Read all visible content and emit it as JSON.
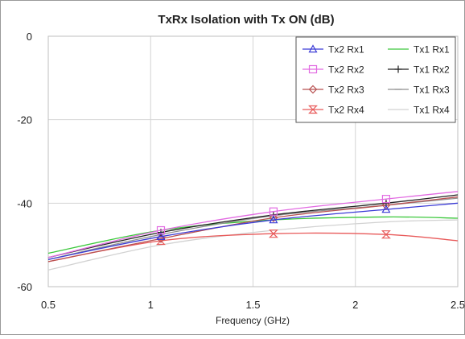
{
  "chart_data": {
    "type": "line",
    "title": "TxRx Isolation with Tx ON (dB)",
    "xlabel": "Frequency (GHz)",
    "ylabel": "",
    "xlim": [
      0.5,
      2.5
    ],
    "ylim": [
      -60,
      0
    ],
    "xticks": [
      0.5,
      1,
      1.5,
      2,
      2.5
    ],
    "xtick_labels": [
      "0.5",
      "1",
      "1.5",
      "2",
      "2.5"
    ],
    "yticks": [
      0,
      -20,
      -40,
      -60
    ],
    "ytick_labels": [
      "0",
      "-20",
      "-40",
      "-60"
    ],
    "grid": true,
    "legend_position": "top-right",
    "series": [
      {
        "name": "Tx2 Rx1",
        "color": "#3b3bd6",
        "marker": "triangle",
        "x": [
          0.5,
          1.05,
          1.6,
          2.15,
          2.5
        ],
        "y": [
          -53.5,
          -48.0,
          -44.0,
          -41.5,
          -40.0
        ]
      },
      {
        "name": "Tx2 Rx2",
        "color": "#e26be2",
        "marker": "square",
        "x": [
          0.5,
          1.05,
          1.6,
          2.15,
          2.5
        ],
        "y": [
          -53.0,
          -46.5,
          -42.0,
          -39.0,
          -37.2
        ]
      },
      {
        "name": "Tx2 Rx3",
        "color": "#b85252",
        "marker": "diamond",
        "x": [
          0.5,
          1.05,
          1.6,
          2.15,
          2.5
        ],
        "y": [
          -54.0,
          -48.5,
          -43.5,
          -40.5,
          -38.5
        ]
      },
      {
        "name": "Tx2 Rx4",
        "color": "#e85a5a",
        "marker": "hourglass",
        "x": [
          0.5,
          1.05,
          1.6,
          2.15,
          2.5
        ],
        "y": [
          -54.0,
          -49.0,
          -47.3,
          -47.5,
          -49.0
        ]
      },
      {
        "name": "Tx1 Rx1",
        "color": "#3cc83c",
        "marker": "none",
        "x": [
          0.5,
          1.05,
          1.6,
          2.15,
          2.5
        ],
        "y": [
          -52.0,
          -46.5,
          -44.0,
          -43.3,
          -43.6
        ]
      },
      {
        "name": "Tx1 Rx2",
        "color": "#222222",
        "marker": "plus",
        "x": [
          0.5,
          1.05,
          1.6,
          2.15,
          2.5
        ],
        "y": [
          -53.0,
          -47.0,
          -42.8,
          -40.0,
          -38.0
        ]
      },
      {
        "name": "Tx1 Rx3",
        "color": "#8f8f8f",
        "marker": "dash",
        "x": [
          0.5,
          1.05,
          1.6,
          2.15,
          2.5
        ],
        "y": [
          -53.5,
          -47.5,
          -43.0,
          -40.5,
          -38.8
        ]
      },
      {
        "name": "Tx1 Rx4",
        "color": "#d2d2d2",
        "marker": "none",
        "x": [
          0.5,
          1.05,
          1.6,
          2.15,
          2.5
        ],
        "y": [
          -56.0,
          -50.0,
          -46.5,
          -44.5,
          -44.0
        ]
      }
    ]
  }
}
